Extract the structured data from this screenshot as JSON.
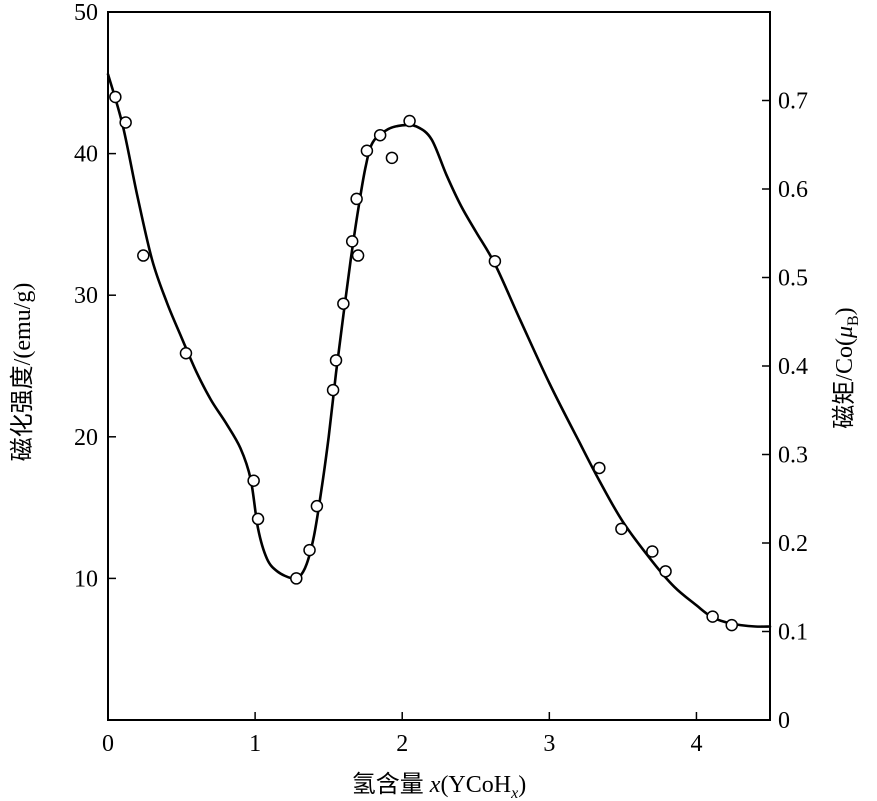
{
  "chart_data": {
    "type": "scatter",
    "xlabel_prefix": "氢含量",
    "xlabel_var": "x",
    "xlabel_formula": "(YCoH",
    "xlabel_sub": "x",
    "xlabel_close": ")",
    "ylabel": "磁化强度/(emu/g)",
    "y2label_main": "磁矩/Co(",
    "y2label_mu": "μ",
    "y2label_sub": "B",
    "y2label_close": ")",
    "xlim": [
      0,
      4.5
    ],
    "ylim": [
      0,
      50
    ],
    "y2lim": [
      0,
      0.8
    ],
    "x_ticks": [
      "0",
      "1",
      "2",
      "3",
      "4"
    ],
    "y_ticks": [
      "10",
      "20",
      "30",
      "40",
      "50"
    ],
    "y2_ticks": [
      "0",
      "0.1",
      "0.2",
      "0.3",
      "0.4",
      "0.5",
      "0.6",
      "0.7"
    ],
    "grid": false,
    "series": [
      {
        "marker": "open-circle",
        "points": [
          [
            0.05,
            44.0
          ],
          [
            0.12,
            42.2
          ],
          [
            0.24,
            32.8
          ],
          [
            0.53,
            25.9
          ],
          [
            0.99,
            16.9
          ],
          [
            1.02,
            14.2
          ],
          [
            1.28,
            10.0
          ],
          [
            1.37,
            12.0
          ],
          [
            1.42,
            15.1
          ],
          [
            1.53,
            23.3
          ],
          [
            1.55,
            25.4
          ],
          [
            1.6,
            29.4
          ],
          [
            1.66,
            33.8
          ],
          [
            1.69,
            36.8
          ],
          [
            1.7,
            32.8
          ],
          [
            1.76,
            40.2
          ],
          [
            1.85,
            41.3
          ],
          [
            1.93,
            39.7
          ],
          [
            2.05,
            42.3
          ],
          [
            2.63,
            32.4
          ],
          [
            3.34,
            17.8
          ],
          [
            3.49,
            13.5
          ],
          [
            3.7,
            11.9
          ],
          [
            3.79,
            10.5
          ],
          [
            4.11,
            7.3
          ],
          [
            4.24,
            6.7
          ]
        ]
      },
      {
        "marker": "none",
        "line": "smooth",
        "points": [
          [
            0.0,
            45.6
          ],
          [
            0.1,
            42.0
          ],
          [
            0.2,
            37.0
          ],
          [
            0.3,
            32.5
          ],
          [
            0.4,
            29.5
          ],
          [
            0.5,
            27.0
          ],
          [
            0.6,
            24.6
          ],
          [
            0.7,
            22.6
          ],
          [
            0.8,
            21.0
          ],
          [
            0.9,
            19.2
          ],
          [
            0.97,
            17.0
          ],
          [
            1.02,
            13.5
          ],
          [
            1.08,
            11.4
          ],
          [
            1.15,
            10.5
          ],
          [
            1.25,
            10.0
          ],
          [
            1.3,
            10.1
          ],
          [
            1.35,
            11.0
          ],
          [
            1.4,
            13.0
          ],
          [
            1.45,
            16.2
          ],
          [
            1.5,
            20.0
          ],
          [
            1.55,
            24.5
          ],
          [
            1.6,
            28.6
          ],
          [
            1.65,
            32.5
          ],
          [
            1.7,
            36.0
          ],
          [
            1.75,
            39.0
          ],
          [
            1.8,
            40.8
          ],
          [
            1.9,
            41.7
          ],
          [
            2.0,
            42.0
          ],
          [
            2.1,
            41.9
          ],
          [
            2.2,
            41.0
          ],
          [
            2.3,
            38.5
          ],
          [
            2.4,
            36.3
          ],
          [
            2.5,
            34.5
          ],
          [
            2.63,
            32.2
          ],
          [
            2.8,
            28.3
          ],
          [
            3.0,
            23.8
          ],
          [
            3.2,
            19.7
          ],
          [
            3.34,
            16.9
          ],
          [
            3.5,
            14.0
          ],
          [
            3.7,
            11.2
          ],
          [
            3.85,
            9.4
          ],
          [
            4.0,
            8.1
          ],
          [
            4.1,
            7.3
          ],
          [
            4.2,
            6.9
          ],
          [
            4.3,
            6.7
          ],
          [
            4.4,
            6.6
          ],
          [
            4.5,
            6.6
          ]
        ]
      }
    ]
  }
}
